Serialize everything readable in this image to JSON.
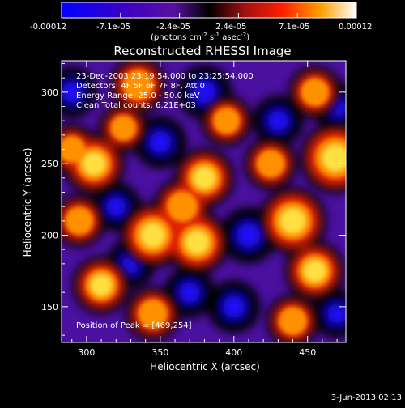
{
  "chart_data": {
    "type": "heatmap",
    "title": "Reconstructed RHESSI Image",
    "xlabel": "Heliocentric X (arcsec)",
    "ylabel": "Heliocentric Y (arcsec)",
    "xlim": [
      283,
      476
    ],
    "ylim": [
      125,
      322
    ],
    "xticks": [
      300,
      350,
      400,
      450
    ],
    "yticks": [
      150,
      200,
      250,
      300
    ],
    "colorbar": {
      "min": -0.00012,
      "max": 0.00012,
      "ticks": [
        "-0.00012",
        "-7.1e-05",
        "-2.4e-05",
        "2.4e-05",
        "7.1e-05",
        "0.00012"
      ],
      "unit_prefix": "(photons cm",
      "unit_exp1": "-2",
      "unit_mid": " s",
      "unit_exp2": "-1",
      "unit_mid2": " asec",
      "unit_exp3": "-2",
      "unit_suffix": ")"
    },
    "annotations": [
      "23-Dec-2003 23:19:54.000 to 23:25:54.000",
      "Detectors: 4F 5F 6F 7F 8F, Att 0",
      "Energy Range: 25.0 - 50.0 keV",
      "Clean    Total counts: 6.21E+03"
    ],
    "peak_label": "Position of Peak = [469,254]",
    "peak": [
      469,
      254
    ],
    "bright_sources": [
      {
        "x": 469,
        "y": 254,
        "level": 1.0
      },
      {
        "x": 440,
        "y": 210,
        "level": 0.9
      },
      {
        "x": 455,
        "y": 175,
        "level": 0.7
      },
      {
        "x": 425,
        "y": 250,
        "level": 0.5
      },
      {
        "x": 345,
        "y": 200,
        "level": 0.85
      },
      {
        "x": 375,
        "y": 195,
        "level": 0.8
      },
      {
        "x": 365,
        "y": 220,
        "level": 0.6
      },
      {
        "x": 380,
        "y": 240,
        "level": 0.7
      },
      {
        "x": 305,
        "y": 250,
        "level": 0.75
      },
      {
        "x": 310,
        "y": 165,
        "level": 0.65
      },
      {
        "x": 295,
        "y": 210,
        "level": 0.5
      },
      {
        "x": 345,
        "y": 145,
        "level": 0.55
      },
      {
        "x": 335,
        "y": 305,
        "level": 0.6
      },
      {
        "x": 290,
        "y": 260,
        "level": 0.45
      },
      {
        "x": 455,
        "y": 300,
        "level": 0.5
      },
      {
        "x": 395,
        "y": 280,
        "level": 0.45
      },
      {
        "x": 440,
        "y": 140,
        "level": 0.5
      },
      {
        "x": 325,
        "y": 275,
        "level": 0.4
      }
    ],
    "dark_sources": [
      {
        "x": 410,
        "y": 200,
        "level": -0.9
      },
      {
        "x": 350,
        "y": 265,
        "level": -0.7
      },
      {
        "x": 380,
        "y": 300,
        "level": -0.8
      },
      {
        "x": 430,
        "y": 280,
        "level": -0.6
      },
      {
        "x": 400,
        "y": 150,
        "level": -0.7
      },
      {
        "x": 290,
        "y": 300,
        "level": -0.6
      },
      {
        "x": 320,
        "y": 220,
        "level": -0.5
      },
      {
        "x": 470,
        "y": 290,
        "level": -0.55
      },
      {
        "x": 330,
        "y": 180,
        "level": -0.5
      },
      {
        "x": 470,
        "y": 145,
        "level": -0.5
      },
      {
        "x": 370,
        "y": 160,
        "level": -0.6
      }
    ]
  },
  "footer": {
    "date": "3-Jun-2013 02:13"
  }
}
